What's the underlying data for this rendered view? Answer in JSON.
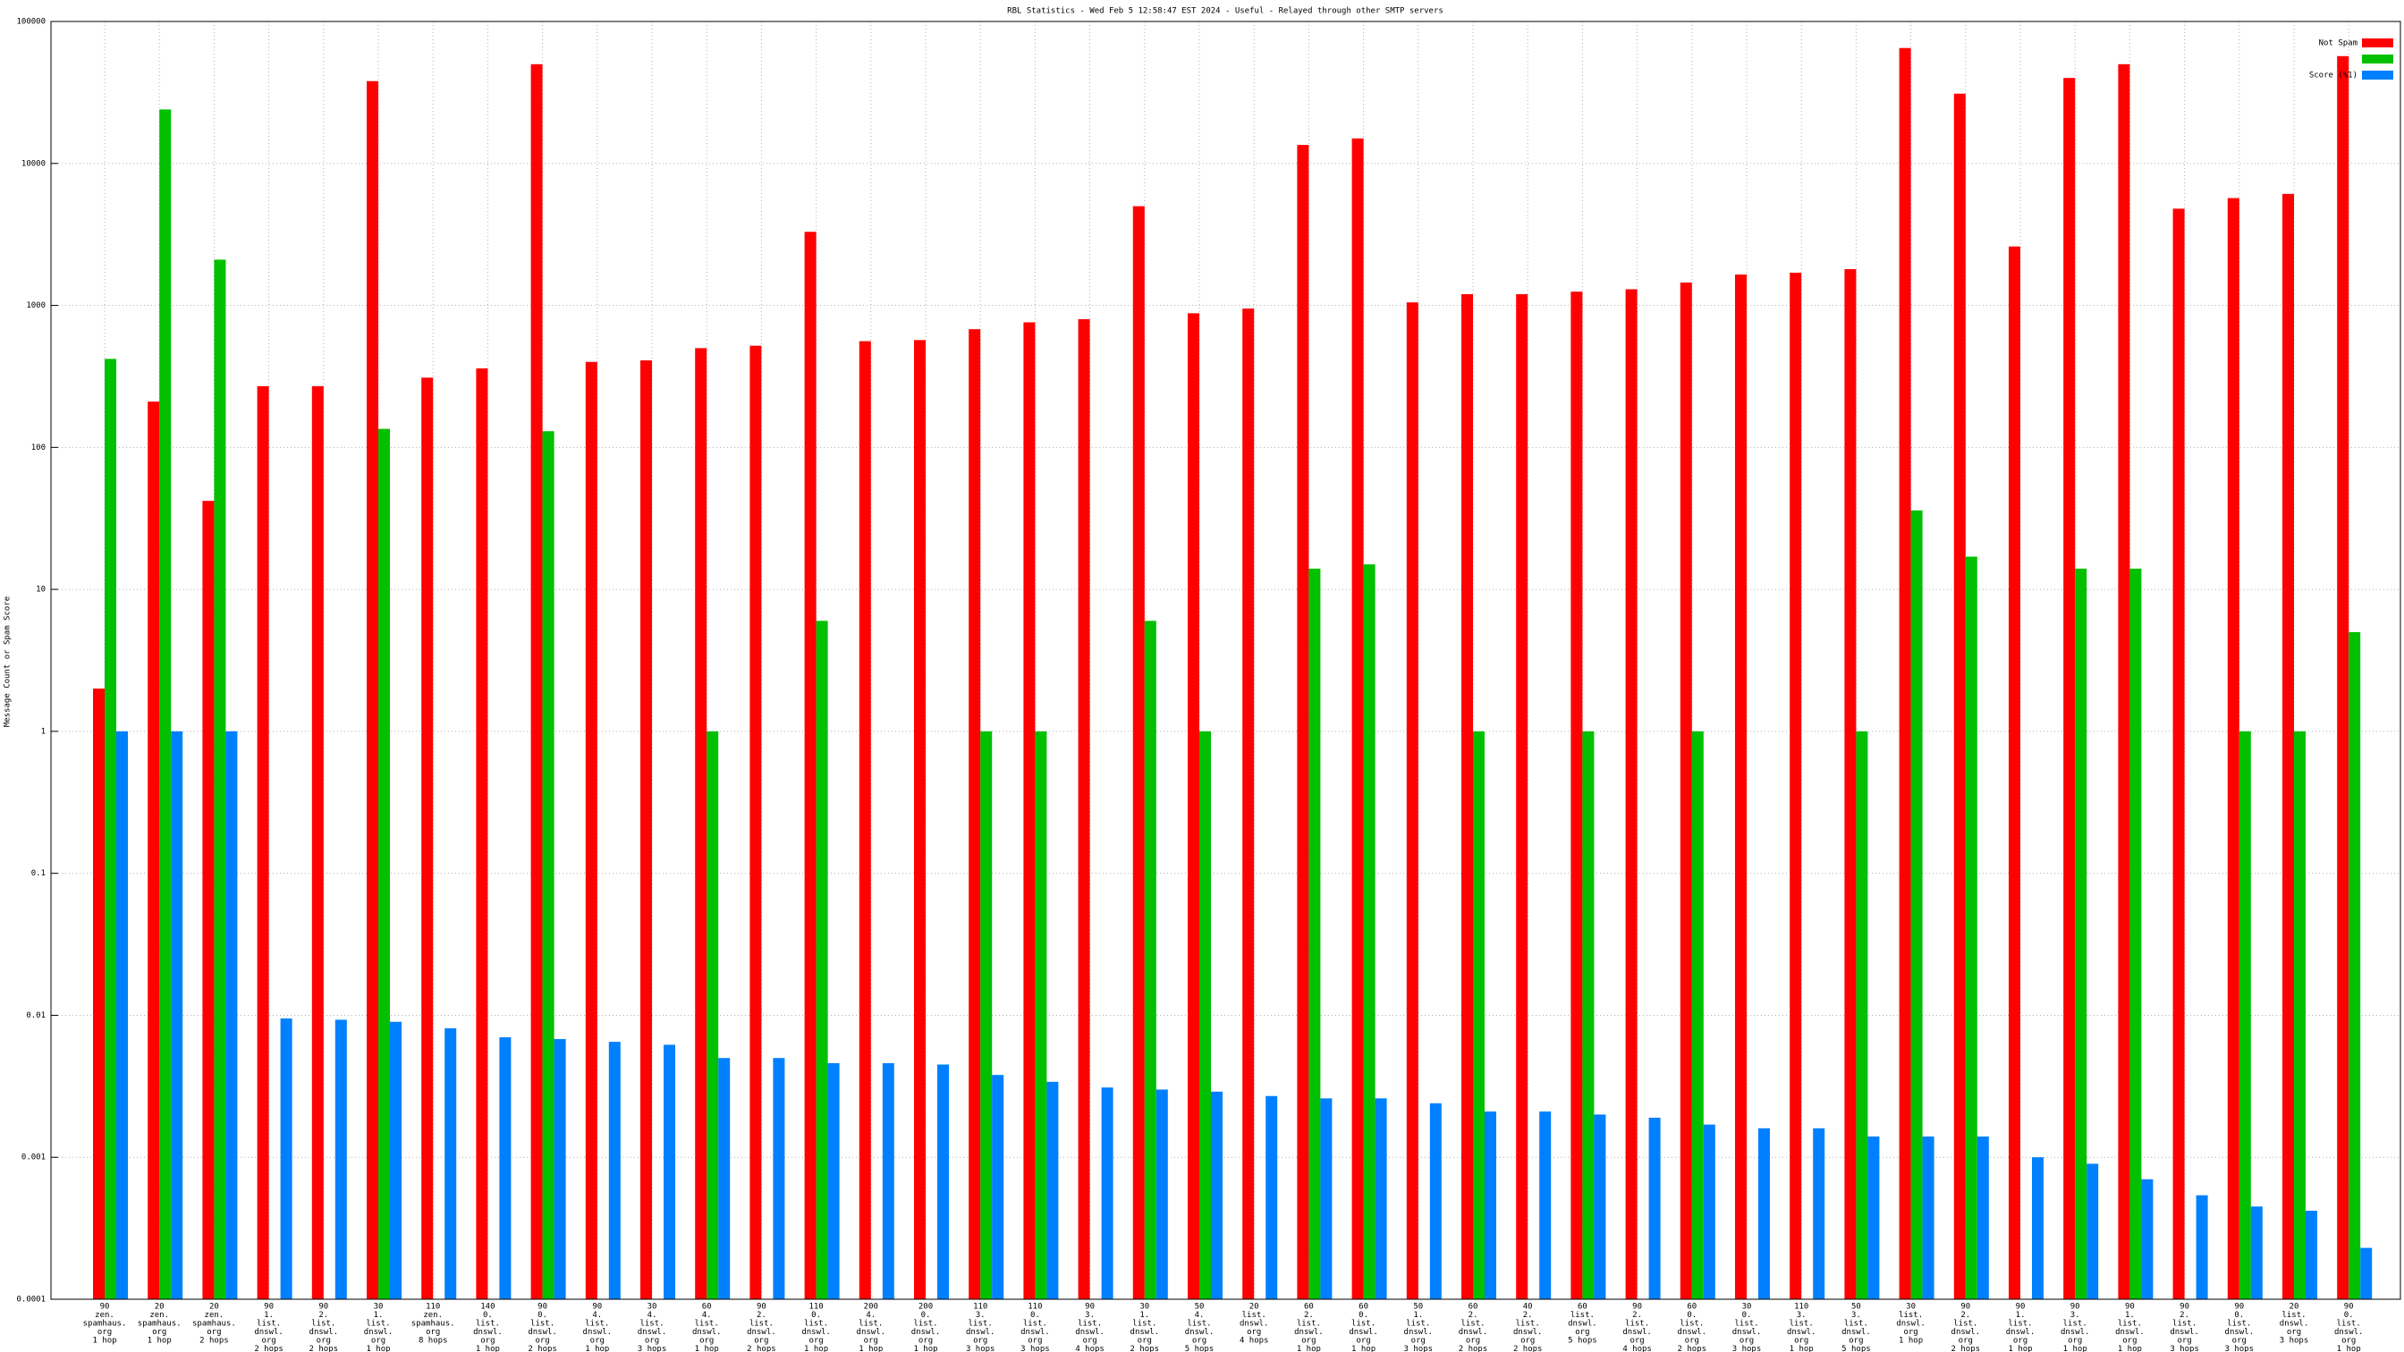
{
  "chart_data": {
    "type": "bar",
    "title": "RBL Statistics - Wed Feb  5 12:58:47 EST 2024 - Useful - Relayed through other SMTP servers",
    "y_label": "Message Count or Spam Score",
    "log_scale": true,
    "grid": true,
    "legend": "top-right",
    "ylim": [
      0.0001,
      100000
    ],
    "yticks": [
      0.0001,
      0.001,
      0.01,
      0.1,
      1,
      10,
      100,
      1000,
      10000,
      100000
    ],
    "categories": [
      [
        "90",
        "zen.",
        "spamhaus.",
        "org",
        "1 hop"
      ],
      [
        "20",
        "zen.",
        "spamhaus.",
        "org",
        "1 hop"
      ],
      [
        "20",
        "zen.",
        "spamhaus.",
        "org",
        "2 hops"
      ],
      [
        "90",
        "1.",
        "list.",
        "dnswl.",
        "org",
        "2 hops"
      ],
      [
        "90",
        "2.",
        "list.",
        "dnswl.",
        "org",
        "2 hops"
      ],
      [
        "30",
        "1.",
        "list.",
        "dnswl.",
        "org",
        "1 hop"
      ],
      [
        "110",
        "zen.",
        "spamhaus.",
        "org",
        "8 hops"
      ],
      [
        "140",
        "0.",
        "list.",
        "dnswl.",
        "org",
        "1 hop"
      ],
      [
        "90",
        "0.",
        "list.",
        "dnswl.",
        "org",
        "2 hops"
      ],
      [
        "90",
        "4.",
        "list.",
        "dnswl.",
        "org",
        "1 hop"
      ],
      [
        "30",
        "4.",
        "list.",
        "dnswl.",
        "org",
        "3 hops"
      ],
      [
        "60",
        "4.",
        "list.",
        "dnswl.",
        "org",
        "1 hop"
      ],
      [
        "90",
        "2.",
        "list.",
        "dnswl.",
        "org",
        "2 hops"
      ],
      [
        "110",
        "0.",
        "list.",
        "dnswl.",
        "org",
        "1 hop"
      ],
      [
        "200",
        "4.",
        "list.",
        "dnswl.",
        "org",
        "1 hop"
      ],
      [
        "200",
        "0.",
        "list.",
        "dnswl.",
        "org",
        "1 hop"
      ],
      [
        "110",
        "3.",
        "list.",
        "dnswl.",
        "org",
        "3 hops"
      ],
      [
        "110",
        "0.",
        "list.",
        "dnswl.",
        "org",
        "3 hops"
      ],
      [
        "90",
        "3.",
        "list.",
        "dnswl.",
        "org",
        "4 hops"
      ],
      [
        "30",
        "1.",
        "list.",
        "dnswl.",
        "org",
        "2 hops"
      ],
      [
        "50",
        "4.",
        "list.",
        "dnswl.",
        "org",
        "5 hops"
      ],
      [
        "20",
        "list.",
        "dnswl.",
        "org",
        "4 hops"
      ],
      [
        "60",
        "2.",
        "list.",
        "dnswl.",
        "org",
        "1 hop"
      ],
      [
        "60",
        "0.",
        "list.",
        "dnswl.",
        "org",
        "1 hop"
      ],
      [
        "50",
        "1.",
        "list.",
        "dnswl.",
        "org",
        "3 hops"
      ],
      [
        "60",
        "2.",
        "list.",
        "dnswl.",
        "org",
        "2 hops"
      ],
      [
        "40",
        "2.",
        "list.",
        "dnswl.",
        "org",
        "2 hops"
      ],
      [
        "60",
        "list.",
        "dnswl.",
        "org",
        "5 hops"
      ],
      [
        "90",
        "2.",
        "list.",
        "dnswl.",
        "org",
        "4 hops"
      ],
      [
        "60",
        "0.",
        "list.",
        "dnswl.",
        "org",
        "2 hops"
      ],
      [
        "30",
        "0.",
        "list.",
        "dnswl.",
        "org",
        "3 hops"
      ],
      [
        "110",
        "3.",
        "list.",
        "dnswl.",
        "org",
        "1 hop"
      ],
      [
        "50",
        "3.",
        "list.",
        "dnswl.",
        "org",
        "5 hops"
      ],
      [
        "30",
        "list.",
        "dnswl.",
        "org",
        "1 hop"
      ],
      [
        "90",
        "2.",
        "list.",
        "dnswl.",
        "org",
        "2 hops"
      ],
      [
        "90",
        "1.",
        "list.",
        "dnswl.",
        "org",
        "1 hop"
      ],
      [
        "90",
        "3.",
        "list.",
        "dnswl.",
        "org",
        "1 hop"
      ],
      [
        "90",
        "1.",
        "list.",
        "dnswl.",
        "org",
        "1 hop"
      ],
      [
        "90",
        "2.",
        "list.",
        "dnswl.",
        "org",
        "3 hops"
      ],
      [
        "90",
        "0.",
        "list.",
        "dnswl.",
        "org",
        "3 hops"
      ],
      [
        "20",
        "list.",
        "dnswl.",
        "org",
        "3 hops"
      ],
      [
        "90",
        "0.",
        "list.",
        "dnswl.",
        "org",
        "1 hop"
      ]
    ],
    "series": [
      {
        "name": "Not Spam",
        "color": "#ff0000",
        "values": [
          2,
          210,
          42,
          270,
          270,
          38000,
          310,
          360,
          50000,
          400,
          410,
          500,
          520,
          3300,
          560,
          570,
          680,
          760,
          800,
          5000,
          880,
          950,
          13500,
          15000,
          1050,
          1200,
          1200,
          1250,
          1300,
          1450,
          1650,
          1700,
          1800,
          65000,
          31000,
          2600,
          40000,
          50000,
          4800,
          5700,
          6100,
          57000
        ]
      },
      {
        "color": "#00c000",
        "values": [
          420,
          24000,
          2100,
          null,
          null,
          135,
          null,
          null,
          130,
          null,
          null,
          1,
          null,
          6,
          null,
          null,
          1,
          1,
          null,
          6,
          1,
          null,
          14,
          15,
          null,
          1,
          null,
          1,
          null,
          1,
          null,
          null,
          1,
          36,
          17,
          null,
          14,
          14,
          null,
          1,
          1,
          5
        ]
      },
      {
        "name": "Score (%1)",
        "color": "#0080ff",
        "values": [
          1,
          1,
          1,
          0.0095,
          0.0093,
          0.009,
          0.0081,
          0.007,
          0.0068,
          0.0065,
          0.0062,
          0.005,
          0.005,
          0.0046,
          0.0046,
          0.0045,
          0.0038,
          0.0034,
          0.0031,
          0.003,
          0.0029,
          0.0027,
          0.0026,
          0.0026,
          0.0024,
          0.0021,
          0.0021,
          0.002,
          0.0019,
          0.0017,
          0.0016,
          0.0016,
          0.0014,
          0.0014,
          0.0014,
          0.001,
          0.0009,
          0.0007,
          0.00054,
          0.00045,
          0.00042,
          0.00023
        ]
      }
    ]
  }
}
